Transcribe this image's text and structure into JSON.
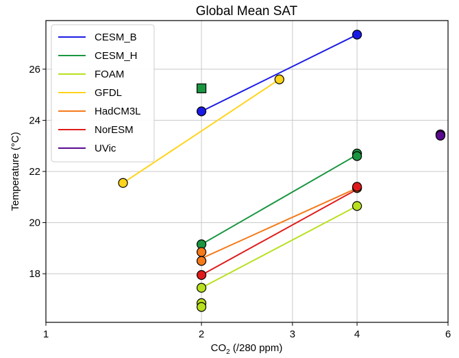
{
  "chart_data": {
    "type": "scatter",
    "title": "Global Mean SAT",
    "ylabel": "Temperature (°C)",
    "xlabel_main": "CO",
    "xlabel_sub": "2",
    "xlabel_rest": " (/280 ppm)",
    "xscale": "log",
    "xlim": [
      1,
      6
    ],
    "ylim": [
      16.1,
      27.9
    ],
    "xticks": [
      1,
      2,
      3,
      4,
      6
    ],
    "yticks": [
      18,
      20,
      22,
      24,
      26
    ],
    "grid": true,
    "legend_position": "top-left",
    "series": [
      {
        "name": "CESM_B",
        "color": "#1a1ae6",
        "points": [
          [
            2,
            24.35,
            "o"
          ],
          [
            4,
            27.35,
            "o"
          ]
        ],
        "line": [
          [
            2,
            24.35
          ],
          [
            4,
            27.35
          ]
        ]
      },
      {
        "name": "CESM_H",
        "color": "#1a9641",
        "points": [
          [
            2,
            25.25,
            "s"
          ],
          [
            2,
            19.15,
            "o"
          ],
          [
            4,
            22.7,
            "o"
          ],
          [
            4,
            22.6,
            "o"
          ]
        ],
        "line": [
          [
            2,
            19.15
          ],
          [
            4,
            22.65
          ]
        ]
      },
      {
        "name": "FOAM",
        "color": "#b8e01e",
        "points": [
          [
            2,
            17.45,
            "o"
          ],
          [
            2,
            16.85,
            "o"
          ],
          [
            2,
            16.7,
            "o"
          ],
          [
            4,
            20.65,
            "o"
          ]
        ],
        "line": [
          [
            2,
            17.45
          ],
          [
            4,
            20.65
          ]
        ]
      },
      {
        "name": "GFDL",
        "color": "#ffd41a",
        "points": [
          [
            1.41,
            21.55,
            "o"
          ],
          [
            2.83,
            25.6,
            "o"
          ]
        ],
        "line": [
          [
            1.41,
            21.55
          ],
          [
            2.83,
            25.6
          ]
        ]
      },
      {
        "name": "HadCM3L",
        "color": "#f57a1a",
        "points": [
          [
            2,
            18.85,
            "o"
          ],
          [
            2,
            18.5,
            "o"
          ],
          [
            4,
            21.35,
            "o"
          ]
        ],
        "line": [
          [
            2,
            18.6
          ],
          [
            4,
            21.35
          ]
        ]
      },
      {
        "name": "NorESM",
        "color": "#e01a1a",
        "points": [
          [
            2,
            17.95,
            "o"
          ],
          [
            4,
            21.4,
            "o"
          ]
        ],
        "line": [
          [
            2,
            17.95
          ],
          [
            4,
            21.3
          ]
        ]
      },
      {
        "name": "UVic",
        "color": "#5a0a8c",
        "points": [
          [
            5.8,
            23.45,
            "o"
          ],
          [
            5.8,
            23.4,
            "o"
          ]
        ],
        "line": []
      }
    ]
  }
}
